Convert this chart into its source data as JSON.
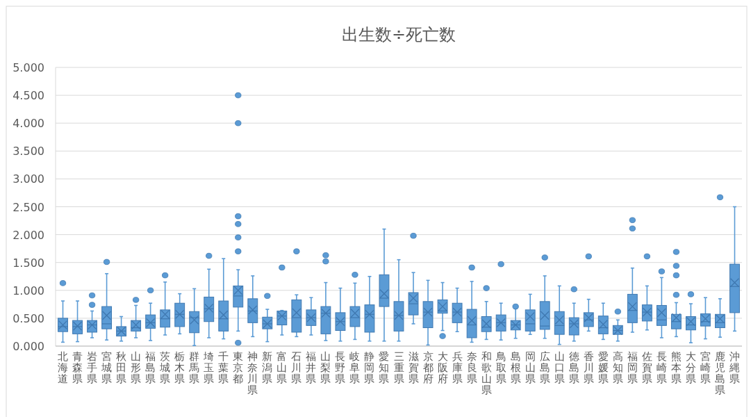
{
  "chart_data": {
    "type": "box",
    "title": "出生数÷死亡数",
    "color": "#5b9bd5",
    "categories": [
      "北海道",
      "青森県",
      "岩手県",
      "宮城県",
      "秋田県",
      "山形県",
      "福島県",
      "茨城県",
      "栃木県",
      "群馬県",
      "埼玉県",
      "千葉県",
      "東京都",
      "神奈川県",
      "新潟県",
      "富山県",
      "石川県",
      "福井県",
      "山梨県",
      "長野県",
      "岐阜県",
      "静岡県",
      "愛知県",
      "三重県",
      "滋賀県",
      "京都府",
      "大阪府",
      "兵庫県",
      "奈良県",
      "和歌山県",
      "鳥取県",
      "島根県",
      "岡山県",
      "広島県",
      "山口県",
      "徳島県",
      "香川県",
      "愛媛県",
      "高知県",
      "福岡県",
      "佐賀県",
      "長崎県",
      "熊本県",
      "大分県",
      "宮崎県",
      "鹿児島県",
      "沖縄県"
    ],
    "boxes": [
      {
        "low": 0.07,
        "q1": 0.26,
        "median": 0.35,
        "q3": 0.5,
        "high": 0.81,
        "mean": 0.38,
        "outliers": [
          1.13
        ]
      },
      {
        "low": 0.08,
        "q1": 0.22,
        "median": 0.35,
        "q3": 0.46,
        "high": 0.81,
        "mean": 0.36
      },
      {
        "low": 0.15,
        "q1": 0.25,
        "median": 0.38,
        "q3": 0.46,
        "high": 0.63,
        "mean": 0.38,
        "outliers": [
          0.74,
          0.91
        ]
      },
      {
        "low": 0.11,
        "q1": 0.31,
        "median": 0.4,
        "q3": 0.71,
        "high": 1.3,
        "mean": 0.55,
        "outliers": [
          1.51
        ]
      },
      {
        "low": 0.09,
        "q1": 0.18,
        "median": 0.27,
        "q3": 0.35,
        "high": 0.53,
        "mean": 0.27
      },
      {
        "low": 0.15,
        "q1": 0.27,
        "median": 0.33,
        "q3": 0.46,
        "high": 0.73,
        "mean": 0.38,
        "outliers": [
          0.83
        ]
      },
      {
        "low": 0.1,
        "q1": 0.32,
        "median": 0.42,
        "q3": 0.56,
        "high": 0.77,
        "mean": 0.42,
        "outliers": [
          1.0
        ]
      },
      {
        "low": 0.2,
        "q1": 0.34,
        "median": 0.49,
        "q3": 0.65,
        "high": 1.15,
        "mean": 0.57,
        "outliers": [
          1.27
        ]
      },
      {
        "low": 0.22,
        "q1": 0.35,
        "median": 0.57,
        "q3": 0.77,
        "high": 0.94,
        "mean": 0.57
      },
      {
        "low": 0.01,
        "q1": 0.24,
        "median": 0.51,
        "q3": 0.62,
        "high": 1.03,
        "mean": 0.47
      },
      {
        "low": 0.15,
        "q1": 0.44,
        "median": 0.67,
        "q3": 0.88,
        "high": 1.38,
        "mean": 0.68,
        "outliers": [
          1.62
        ]
      },
      {
        "low": 0.13,
        "q1": 0.27,
        "median": 0.49,
        "q3": 0.81,
        "high": 1.57,
        "mean": 0.56
      },
      {
        "low": 0.27,
        "q1": 0.7,
        "median": 0.9,
        "q3": 1.08,
        "high": 1.37,
        "mean": 1.0,
        "outliers": [
          0.06,
          1.7,
          1.95,
          2.19,
          2.33,
          4.0,
          4.5
        ]
      },
      {
        "low": 0.17,
        "q1": 0.42,
        "median": 0.63,
        "q3": 0.85,
        "high": 1.26,
        "mean": 0.65
      },
      {
        "low": 0.08,
        "q1": 0.31,
        "median": 0.4,
        "q3": 0.52,
        "high": 0.66,
        "mean": 0.4,
        "outliers": [
          0.9
        ]
      },
      {
        "low": 0.2,
        "q1": 0.38,
        "median": 0.54,
        "q3": 0.63,
        "high": 0.64,
        "mean": 0.54,
        "outliers": [
          1.41
        ]
      },
      {
        "low": 0.17,
        "q1": 0.25,
        "median": 0.51,
        "q3": 0.83,
        "high": 0.92,
        "mean": 0.6,
        "outliers": [
          1.7
        ]
      },
      {
        "low": 0.2,
        "q1": 0.37,
        "median": 0.51,
        "q3": 0.65,
        "high": 0.87,
        "mean": 0.51
      },
      {
        "low": 0.1,
        "q1": 0.22,
        "median": 0.59,
        "q3": 0.71,
        "high": 1.14,
        "mean": 0.59,
        "outliers": [
          1.52,
          1.63
        ]
      },
      {
        "low": 0.09,
        "q1": 0.28,
        "median": 0.44,
        "q3": 0.6,
        "high": 1.04,
        "mean": 0.44
      },
      {
        "low": 0.12,
        "q1": 0.35,
        "median": 0.51,
        "q3": 0.71,
        "high": 1.13,
        "mean": 0.59,
        "outliers": [
          1.28
        ]
      },
      {
        "low": 0.09,
        "q1": 0.25,
        "median": 0.57,
        "q3": 0.74,
        "high": 1.25,
        "mean": 0.57
      },
      {
        "low": 0.09,
        "q1": 0.71,
        "median": 0.86,
        "q3": 1.28,
        "high": 2.1,
        "mean": 0.94
      },
      {
        "low": 0.09,
        "q1": 0.27,
        "median": 0.55,
        "q3": 0.8,
        "high": 1.55,
        "mean": 0.55
      },
      {
        "low": 0.4,
        "q1": 0.56,
        "median": 0.76,
        "q3": 0.96,
        "high": 1.32,
        "mean": 0.86,
        "outliers": [
          1.98
        ]
      },
      {
        "low": 0.02,
        "q1": 0.33,
        "median": 0.61,
        "q3": 0.8,
        "high": 1.18,
        "mean": 0.61
      },
      {
        "low": 0.28,
        "q1": 0.59,
        "median": 0.63,
        "q3": 0.83,
        "high": 1.14,
        "mean": 0.71,
        "outliers": [
          0.18
        ]
      },
      {
        "low": 0.26,
        "q1": 0.42,
        "median": 0.61,
        "q3": 0.77,
        "high": 1.04,
        "mean": 0.61
      },
      {
        "low": 0.07,
        "q1": 0.15,
        "median": 0.38,
        "q3": 0.66,
        "high": 1.16,
        "mean": 0.46,
        "outliers": [
          1.41
        ]
      },
      {
        "low": 0.12,
        "q1": 0.26,
        "median": 0.34,
        "q3": 0.53,
        "high": 0.8,
        "mean": 0.4,
        "outliers": [
          1.04
        ]
      },
      {
        "low": 0.11,
        "q1": 0.27,
        "median": 0.42,
        "q3": 0.56,
        "high": 0.77,
        "mean": 0.42,
        "outliers": [
          1.47
        ]
      },
      {
        "low": 0.14,
        "q1": 0.29,
        "median": 0.38,
        "q3": 0.46,
        "high": 0.67,
        "mean": 0.38,
        "outliers": [
          0.71
        ]
      },
      {
        "low": 0.21,
        "q1": 0.27,
        "median": 0.4,
        "q3": 0.65,
        "high": 0.93,
        "mean": 0.53
      },
      {
        "low": 0.14,
        "q1": 0.3,
        "median": 0.36,
        "q3": 0.8,
        "high": 1.26,
        "mean": 0.55,
        "outliers": [
          1.59
        ]
      },
      {
        "low": 0.03,
        "q1": 0.21,
        "median": 0.37,
        "q3": 0.62,
        "high": 1.08,
        "mean": 0.47
      },
      {
        "low": 0.09,
        "q1": 0.2,
        "median": 0.4,
        "q3": 0.51,
        "high": 0.77,
        "mean": 0.4,
        "outliers": [
          1.02
        ]
      },
      {
        "low": 0.27,
        "q1": 0.35,
        "median": 0.47,
        "q3": 0.6,
        "high": 0.84,
        "mean": 0.51,
        "outliers": [
          1.61
        ]
      },
      {
        "low": 0.12,
        "q1": 0.22,
        "median": 0.33,
        "q3": 0.54,
        "high": 0.77,
        "mean": 0.39
      },
      {
        "low": 0.09,
        "q1": 0.21,
        "median": 0.28,
        "q3": 0.37,
        "high": 0.47,
        "mean": 0.28,
        "outliers": [
          0.62
        ]
      },
      {
        "low": 0.25,
        "q1": 0.42,
        "median": 0.64,
        "q3": 0.93,
        "high": 1.4,
        "mean": 0.71,
        "outliers": [
          2.11,
          2.26
        ]
      },
      {
        "low": 0.29,
        "q1": 0.45,
        "median": 0.61,
        "q3": 0.74,
        "high": 1.08,
        "mean": 0.61,
        "outliers": [
          1.61
        ]
      },
      {
        "low": 0.15,
        "q1": 0.37,
        "median": 0.47,
        "q3": 0.73,
        "high": 1.23,
        "mean": 0.6,
        "outliers": [
          1.34
        ]
      },
      {
        "low": 0.17,
        "q1": 0.31,
        "median": 0.44,
        "q3": 0.57,
        "high": 0.78,
        "mean": 0.51,
        "outliers": [
          0.92,
          1.27,
          1.44,
          1.69
        ]
      },
      {
        "low": 0.06,
        "q1": 0.29,
        "median": 0.38,
        "q3": 0.53,
        "high": 0.76,
        "mean": 0.44,
        "outliers": [
          0.93
        ]
      },
      {
        "low": 0.13,
        "q1": 0.36,
        "median": 0.44,
        "q3": 0.58,
        "high": 0.87,
        "mean": 0.49
      },
      {
        "low": 0.16,
        "q1": 0.33,
        "median": 0.42,
        "q3": 0.57,
        "high": 0.85,
        "mean": 0.49,
        "outliers": [
          2.67
        ]
      },
      {
        "low": 0.27,
        "q1": 0.6,
        "median": 1.07,
        "q3": 1.47,
        "high": 2.5,
        "mean": 1.14
      }
    ],
    "ylim": [
      0,
      5
    ],
    "yticks": [
      {
        "value": 0,
        "label": "0.000"
      },
      {
        "value": 0.5,
        "label": "0.500"
      },
      {
        "value": 1,
        "label": "1.000"
      },
      {
        "value": 1.5,
        "label": "1.500"
      },
      {
        "value": 2,
        "label": "2.000"
      },
      {
        "value": 2.5,
        "label": "2.500"
      },
      {
        "value": 3,
        "label": "3.000"
      },
      {
        "value": 3.5,
        "label": "3.500"
      },
      {
        "value": 4,
        "label": "4.000"
      },
      {
        "value": 4.5,
        "label": "4.500"
      },
      {
        "value": 5,
        "label": "5.000"
      }
    ],
    "grid": "y"
  }
}
